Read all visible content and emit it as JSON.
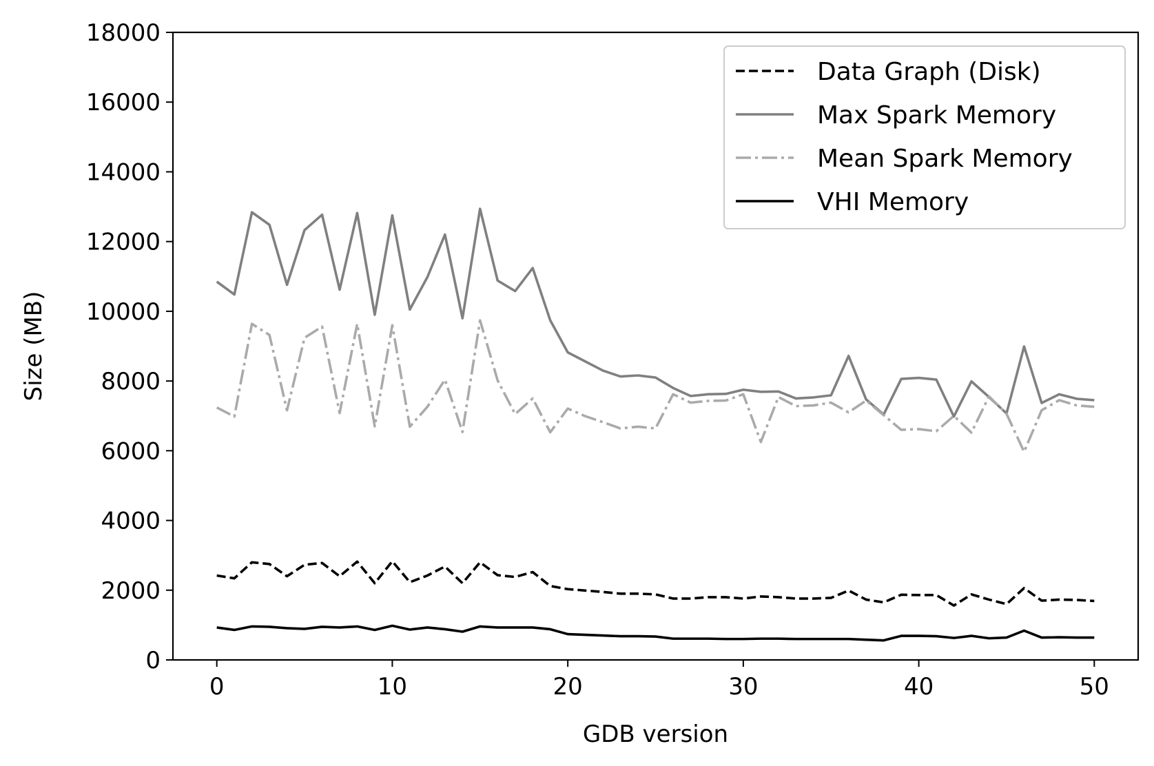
{
  "chart_data": {
    "type": "line",
    "title": "",
    "xlabel": "GDB version",
    "ylabel": "Size (MB)",
    "xlim": [
      -2.5,
      52.5
    ],
    "ylim": [
      0,
      18000
    ],
    "xticks": [
      0,
      10,
      20,
      30,
      40,
      50
    ],
    "yticks": [
      0,
      2000,
      4000,
      6000,
      8000,
      10000,
      12000,
      14000,
      16000,
      18000
    ],
    "grid": false,
    "legend_position": "top-right",
    "x": [
      0,
      1,
      2,
      3,
      4,
      5,
      6,
      7,
      8,
      9,
      10,
      11,
      12,
      13,
      14,
      15,
      16,
      17,
      18,
      19,
      20,
      21,
      22,
      23,
      24,
      25,
      26,
      27,
      28,
      29,
      30,
      31,
      32,
      33,
      34,
      35,
      36,
      37,
      38,
      39,
      40,
      41,
      42,
      43,
      44,
      45,
      46,
      47,
      48,
      49,
      50
    ],
    "series": [
      {
        "name": "Data Graph (Disk)",
        "color": "#000000",
        "dash": "dashed",
        "values": [
          2420,
          2340,
          2800,
          2750,
          2400,
          2730,
          2780,
          2400,
          2820,
          2200,
          2830,
          2230,
          2420,
          2680,
          2200,
          2800,
          2430,
          2380,
          2520,
          2120,
          2030,
          1990,
          1950,
          1900,
          1900,
          1880,
          1760,
          1760,
          1800,
          1800,
          1760,
          1820,
          1800,
          1760,
          1760,
          1780,
          1990,
          1730,
          1650,
          1870,
          1860,
          1860,
          1560,
          1880,
          1730,
          1600,
          2060,
          1700,
          1730,
          1720,
          1690
        ]
      },
      {
        "name": "Max Spark Memory",
        "color": "#808080",
        "dash": "solid",
        "values": [
          10850,
          10480,
          12840,
          12480,
          10760,
          12330,
          12770,
          10620,
          12820,
          9900,
          12750,
          10050,
          10980,
          12200,
          9800,
          12940,
          10880,
          10580,
          11240,
          9740,
          8820,
          8560,
          8300,
          8130,
          8160,
          8100,
          7800,
          7570,
          7620,
          7630,
          7750,
          7690,
          7700,
          7500,
          7530,
          7590,
          8720,
          7470,
          7040,
          8060,
          8090,
          8040,
          6980,
          7990,
          7540,
          7070,
          8990,
          7370,
          7620,
          7490,
          7450
        ]
      },
      {
        "name": "Mean Spark Memory",
        "color": "#aaaaaa",
        "dash": "dashdot",
        "values": [
          7240,
          6980,
          9640,
          9320,
          7160,
          9240,
          9560,
          7080,
          9640,
          6700,
          9600,
          6690,
          7260,
          8040,
          6540,
          9740,
          8020,
          7050,
          7500,
          6530,
          7210,
          6990,
          6820,
          6640,
          6690,
          6640,
          7620,
          7380,
          7430,
          7440,
          7620,
          6250,
          7540,
          7280,
          7300,
          7380,
          7100,
          7440,
          7020,
          6600,
          6620,
          6560,
          7000,
          6520,
          7560,
          7060,
          5970,
          7160,
          7450,
          7300,
          7260
        ]
      },
      {
        "name": "VHI Memory",
        "color": "#000000",
        "dash": "solid",
        "values": [
          930,
          860,
          960,
          950,
          910,
          890,
          950,
          930,
          960,
          860,
          980,
          870,
          930,
          880,
          810,
          960,
          930,
          930,
          930,
          880,
          740,
          720,
          700,
          680,
          680,
          670,
          610,
          610,
          610,
          600,
          600,
          610,
          610,
          600,
          600,
          600,
          600,
          580,
          560,
          690,
          690,
          680,
          630,
          690,
          620,
          640,
          840,
          640,
          650,
          640,
          640
        ]
      }
    ]
  }
}
